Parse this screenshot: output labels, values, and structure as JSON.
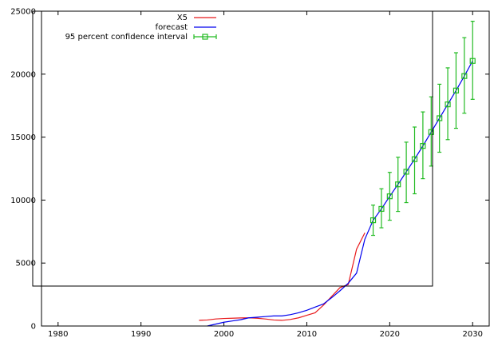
{
  "chart_data": {
    "type": "line",
    "title": "",
    "xlabel": "",
    "ylabel": "",
    "xlim": [
      1978,
      2032
    ],
    "ylim": [
      0,
      25000
    ],
    "x_ticks": [
      1980,
      1990,
      2000,
      2010,
      2020,
      2030
    ],
    "y_ticks": [
      0,
      5000,
      10000,
      15000,
      20000,
      25000
    ],
    "x_tick_labels": [
      "1980",
      "1990",
      "2000",
      "2010",
      "2020",
      "2030"
    ],
    "y_tick_labels": [
      "0",
      "5000",
      "10000",
      "15000",
      "20000",
      "25000"
    ],
    "grid": false,
    "legend_position": "top-left, inside a boxed overlay region",
    "series": [
      {
        "name": "X5",
        "color": "#e8191b",
        "x": [
          1997,
          1998,
          1999,
          2000,
          2001,
          2002,
          2003,
          2004,
          2005,
          2006,
          2007,
          2008,
          2009,
          2010,
          2011,
          2012,
          2013,
          2014,
          2015,
          2016,
          2017
        ],
        "y": [
          450,
          480,
          560,
          600,
          620,
          640,
          650,
          620,
          560,
          480,
          450,
          520,
          650,
          850,
          1050,
          1650,
          2350,
          3050,
          3300,
          6100,
          7400
        ]
      },
      {
        "name": "forecast",
        "color": "#0000ee",
        "x": [
          1998,
          1999,
          2000,
          2001,
          2002,
          2003,
          2004,
          2005,
          2006,
          2007,
          2008,
          2009,
          2010,
          2011,
          2012,
          2013,
          2014,
          2015,
          2016,
          2017,
          2018,
          2019,
          2020,
          2021,
          2022,
          2023,
          2024,
          2025,
          2026,
          2027,
          2028,
          2029,
          2030
        ],
        "y": [
          0,
          150,
          300,
          400,
          500,
          650,
          700,
          750,
          800,
          800,
          900,
          1050,
          1250,
          1500,
          1750,
          2250,
          2800,
          3400,
          4200,
          6900,
          8400,
          9300,
          10300,
          11250,
          12250,
          13250,
          14300,
          15400,
          16500,
          17600,
          18700,
          19850,
          21050
        ]
      },
      {
        "name": "95 percent confidence interval",
        "color": "#22bb22",
        "x": [
          2018,
          2019,
          2020,
          2021,
          2022,
          2023,
          2024,
          2025,
          2026,
          2027,
          2028,
          2029,
          2030
        ],
        "y": [
          8400,
          9300,
          10300,
          11250,
          12250,
          13250,
          14300,
          15400,
          16500,
          17600,
          18700,
          19850,
          21050
        ],
        "lower": [
          7200,
          7800,
          8400,
          9100,
          9800,
          10500,
          11700,
          12700,
          13800,
          14800,
          15700,
          16900,
          18000
        ],
        "upper": [
          9600,
          10900,
          12200,
          13400,
          14600,
          15800,
          17000,
          18200,
          19200,
          20500,
          21700,
          22900,
          24200
        ]
      }
    ]
  }
}
